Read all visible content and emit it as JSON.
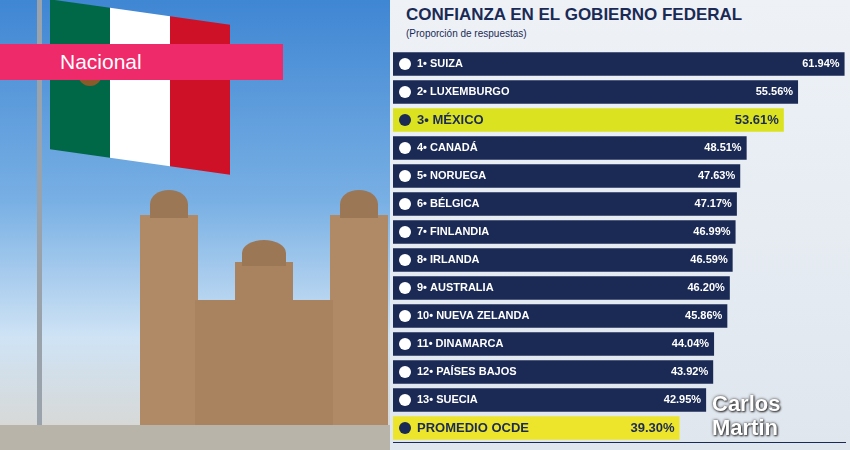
{
  "label": "Nacional",
  "watermark": "Carlos Martin",
  "chart_data": {
    "type": "bar",
    "orientation": "horizontal",
    "title": "CONFIANZA EN EL GOBIERNO FEDERAL",
    "subtitle": "(Proporción de respuestas)",
    "categories": [
      "1• SUIZA",
      "2• LUXEMBURGO",
      "3• MÉXICO",
      "4• CANADÁ",
      "5• NORUEGA",
      "6• BÉLGICA",
      "7• FINLANDIA",
      "8• IRLANDA",
      "9• AUSTRALIA",
      "10• NUEVA ZELANDA",
      "11• DINAMARCA",
      "12• PAÍSES BAJOS",
      "13• SUECIA",
      "PROMEDIO OCDE"
    ],
    "values": [
      61.94,
      55.56,
      53.61,
      48.51,
      47.63,
      47.17,
      46.99,
      46.59,
      46.2,
      45.86,
      44.04,
      43.92,
      42.95,
      39.3
    ],
    "value_labels": [
      "61.94%",
      "55.56%",
      "53.61%",
      "48.51%",
      "47.63%",
      "47.17%",
      "46.99%",
      "46.59%",
      "46.20%",
      "45.86%",
      "44.04%",
      "43.92%",
      "42.95%",
      "39.30%"
    ],
    "colors": [
      "#1b2a55",
      "#1b2a55",
      "#dbe21f",
      "#1b2a55",
      "#1b2a55",
      "#1b2a55",
      "#1b2a55",
      "#1b2a55",
      "#1b2a55",
      "#1b2a55",
      "#1b2a55",
      "#1b2a55",
      "#1b2a55",
      "#ece52b"
    ],
    "xlim": [
      0,
      62
    ],
    "tick_labels": false,
    "grid": false,
    "data_labels": true
  }
}
